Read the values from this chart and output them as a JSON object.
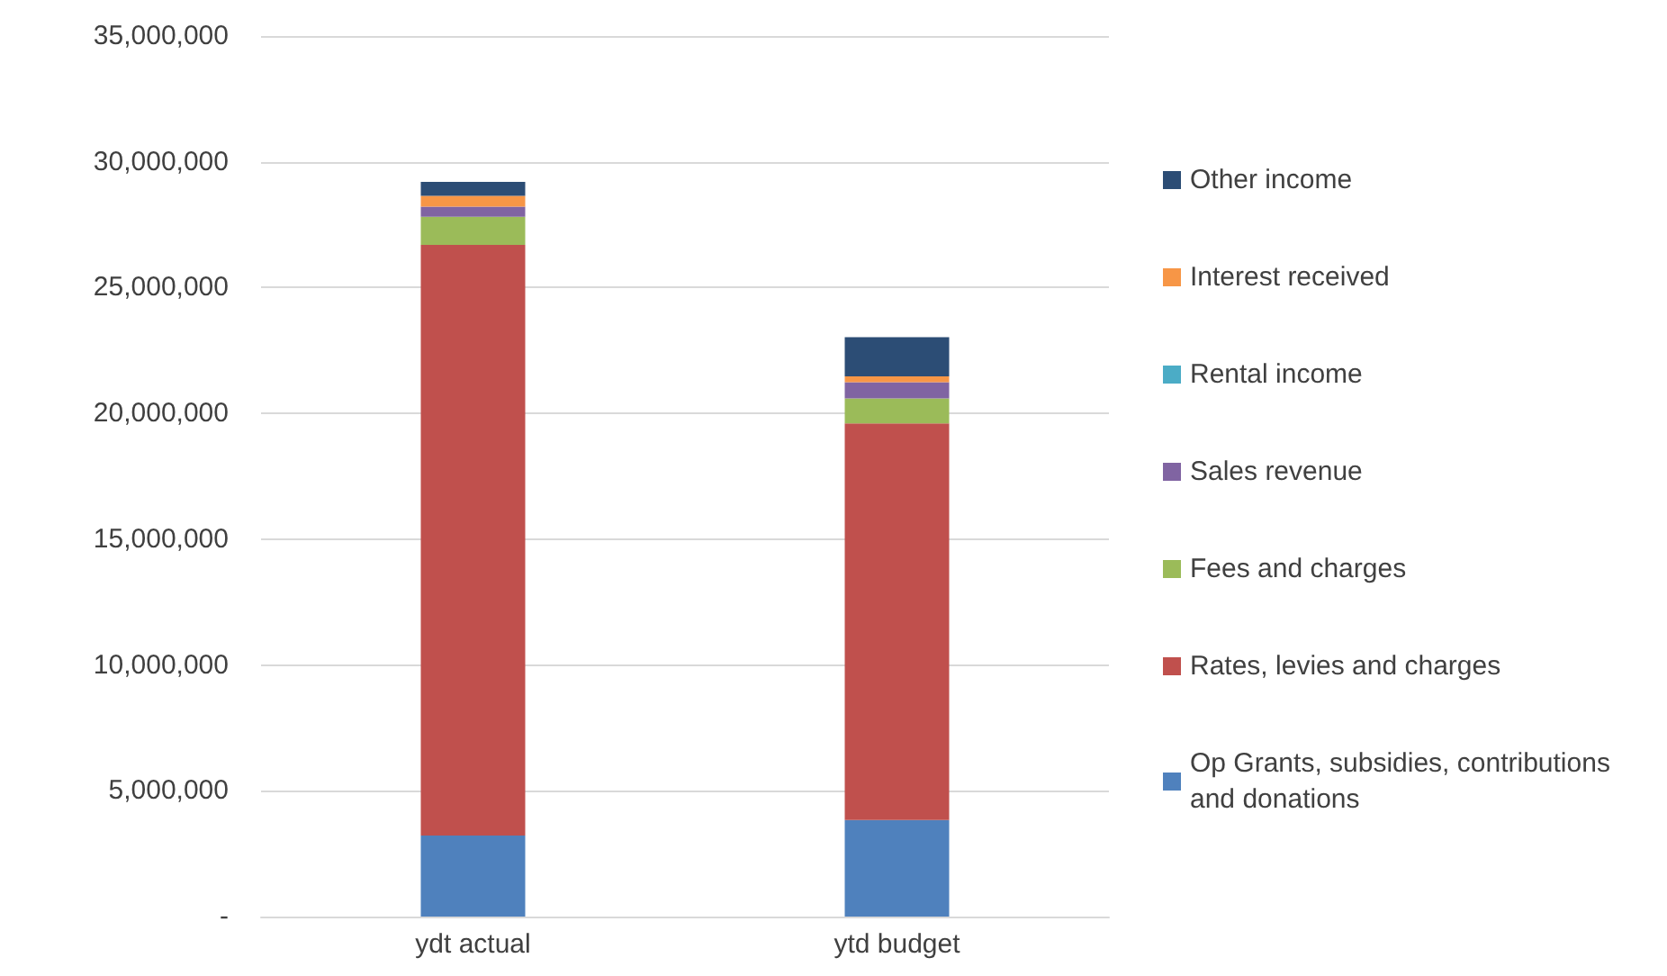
{
  "chart_data": {
    "type": "bar",
    "stacked": true,
    "categories": [
      "ydt actual",
      "ytd budget"
    ],
    "series": [
      {
        "name": "Op Grants, subsidies, contributions and donations",
        "color": "#4f81bd",
        "values": [
          3220000,
          3840000
        ]
      },
      {
        "name": "Rates, levies and charges",
        "color": "#c0504d",
        "values": [
          23480000,
          15760000
        ]
      },
      {
        "name": "Fees and charges",
        "color": "#9bbb59",
        "values": [
          1120000,
          1000000
        ]
      },
      {
        "name": "Sales revenue",
        "color": "#8064a2",
        "values": [
          400000,
          640000
        ]
      },
      {
        "name": "Rental income",
        "color": "#4bacc6",
        "values": [
          0,
          0
        ]
      },
      {
        "name": "Interest received",
        "color": "#f79646",
        "values": [
          430000,
          230000
        ]
      },
      {
        "name": "Other income",
        "color": "#2c4d75",
        "values": [
          550000,
          1560000
        ]
      }
    ],
    "ylim": [
      0,
      35000000
    ],
    "yticks": [
      {
        "value": 0,
        "label": "-"
      },
      {
        "value": 5000000,
        "label": "5,000,000"
      },
      {
        "value": 10000000,
        "label": "10,000,000"
      },
      {
        "value": 15000000,
        "label": "15,000,000"
      },
      {
        "value": 20000000,
        "label": "20,000,000"
      },
      {
        "value": 25000000,
        "label": "25,000,000"
      },
      {
        "value": 30000000,
        "label": "30,000,000"
      },
      {
        "value": 35000000,
        "label": "35,000,000"
      }
    ],
    "grid": "y",
    "legend": "right"
  }
}
